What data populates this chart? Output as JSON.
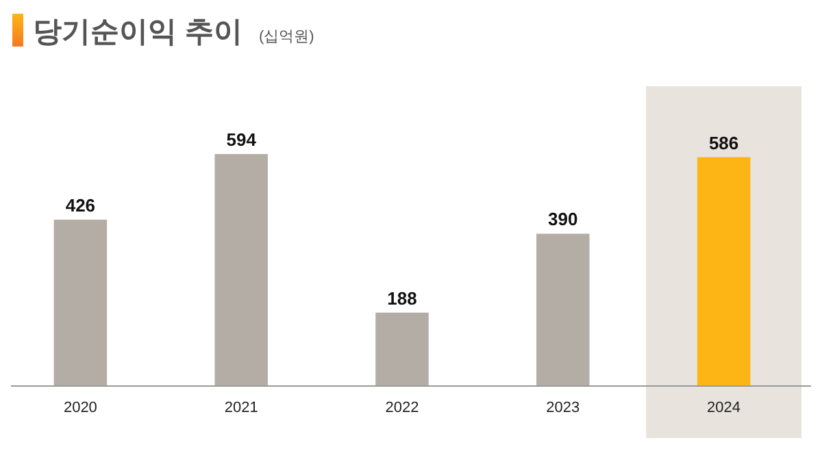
{
  "chart_data": {
    "type": "bar",
    "title": "당기순이익 추이",
    "subtitle": "(십억원)",
    "categories": [
      "2020",
      "2021",
      "2022",
      "2023",
      "2024"
    ],
    "values": [
      426,
      594,
      188,
      390,
      586
    ],
    "colors": [
      "#b3ada6",
      "#b3ada6",
      "#b3ada6",
      "#b3ada6",
      "#fdb515"
    ],
    "data_labels": true,
    "tick_labels": "x",
    "bands": [
      {
        "axis": "x",
        "from": "2024",
        "to": "2024",
        "color": "#e9e3de"
      }
    ]
  }
}
